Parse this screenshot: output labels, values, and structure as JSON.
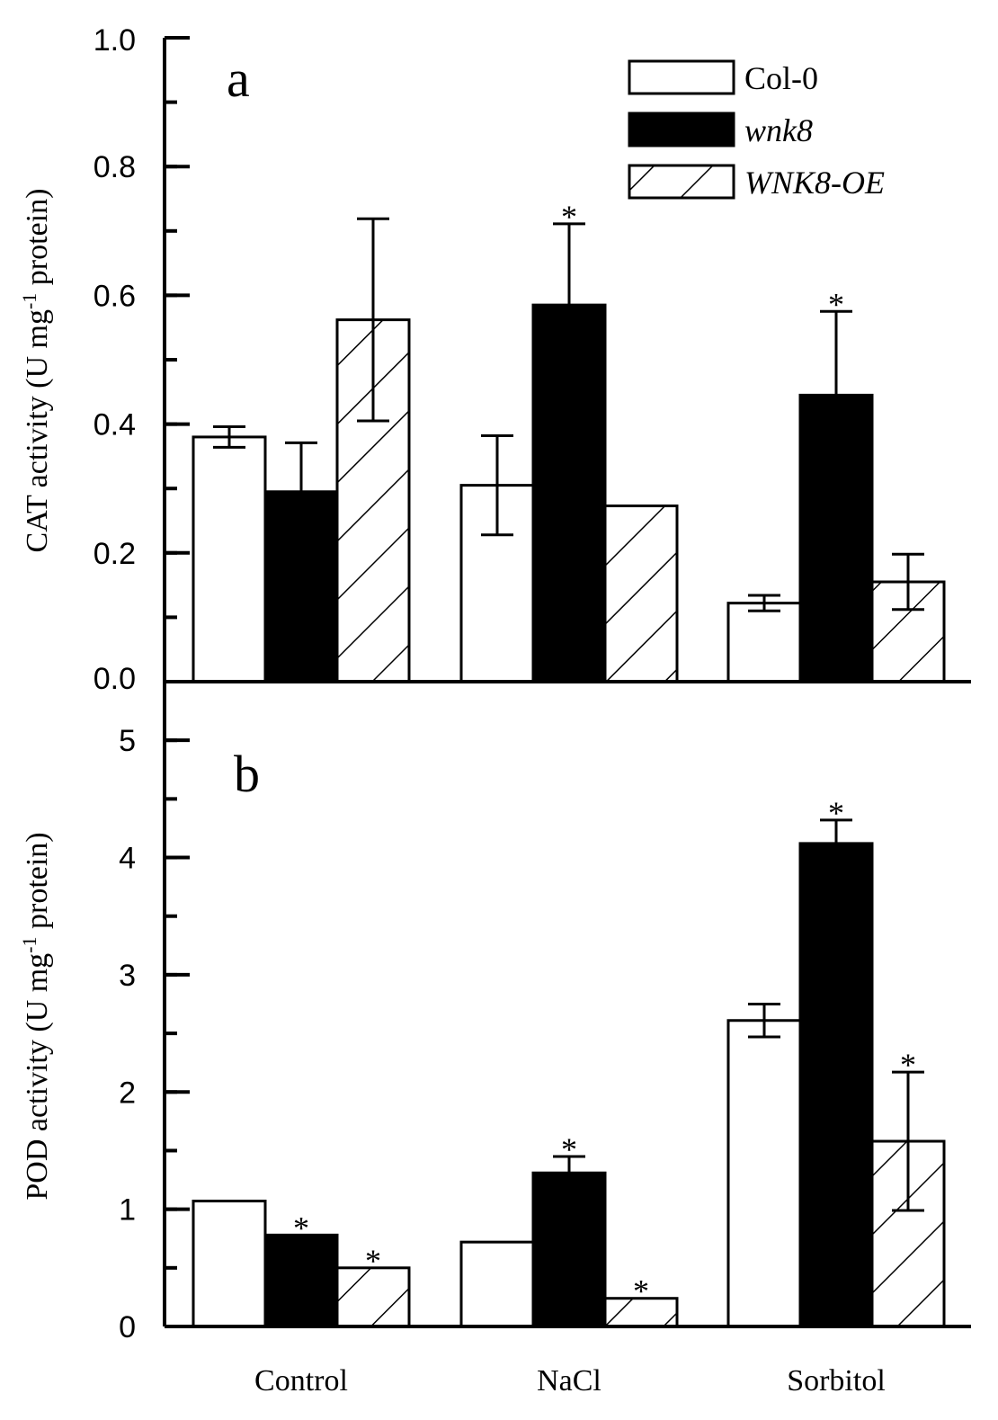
{
  "chart_data": [
    {
      "panel": "a",
      "type": "bar",
      "title": "",
      "xlabel": "",
      "ylabel_parts": [
        "CAT activity (U mg",
        "-1",
        " protein)"
      ],
      "ylim": [
        0,
        1.0
      ],
      "yticks": [
        0.0,
        0.2,
        0.4,
        0.6,
        0.8,
        1.0
      ],
      "ytick_labels": [
        "0.0",
        "0.2",
        "0.4",
        "0.6",
        "0.8",
        "1.0"
      ],
      "yminor_step": 0.1,
      "categories": [
        "Control",
        "NaCl",
        "Sorbitol"
      ],
      "series": [
        {
          "name": "Col-0",
          "fill": "white",
          "values": [
            0.38,
            0.305,
            0.122
          ],
          "errors": [
            0.016,
            0.077,
            0.012
          ],
          "significant": [
            false,
            false,
            false
          ]
        },
        {
          "name": "wnk8",
          "fill": "black",
          "values": [
            0.295,
            0.585,
            0.445
          ],
          "errors": [
            0.076,
            0.126,
            0.13
          ],
          "significant": [
            false,
            true,
            true
          ]
        },
        {
          "name": "WNK8-OE",
          "fill": "hatch",
          "values": [
            0.562,
            0.273,
            0.155
          ],
          "errors": [
            0.157,
            0.0,
            0.043
          ],
          "significant": [
            false,
            false,
            false
          ]
        }
      ],
      "legend_position": "top-right"
    },
    {
      "panel": "b",
      "type": "bar",
      "title": "",
      "xlabel": "",
      "ylabel_parts": [
        "POD activity (U mg",
        "-1",
        " protein)"
      ],
      "ylim": [
        0,
        5.5
      ],
      "yticks": [
        0,
        1,
        2,
        3,
        4,
        5
      ],
      "ytick_labels": [
        "0",
        "1",
        "2",
        "3",
        "4",
        "5"
      ],
      "yminor_step": 0.5,
      "categories": [
        "Control",
        "NaCl",
        "Sorbitol"
      ],
      "series": [
        {
          "name": "Col-0",
          "fill": "white",
          "values": [
            1.07,
            0.72,
            2.61
          ],
          "errors": [
            0.0,
            0.0,
            0.14
          ],
          "significant": [
            false,
            false,
            false
          ]
        },
        {
          "name": "wnk8",
          "fill": "black",
          "values": [
            0.78,
            1.31,
            4.12
          ],
          "errors": [
            0.0,
            0.14,
            0.2
          ],
          "significant": [
            true,
            true,
            true
          ]
        },
        {
          "name": "WNK8-OE",
          "fill": "hatch",
          "values": [
            0.5,
            0.24,
            1.58
          ],
          "errors": [
            0.0,
            0.0,
            0.59
          ],
          "significant": [
            true,
            true,
            true
          ]
        }
      ]
    }
  ],
  "legend": [
    {
      "label": "Col-0",
      "fill": "white",
      "italic": false
    },
    {
      "label": "wnk8",
      "fill": "black",
      "italic": true
    },
    {
      "label": "WNK8-OE",
      "fill": "hatch",
      "italic": true
    }
  ],
  "significance_marker": "*"
}
